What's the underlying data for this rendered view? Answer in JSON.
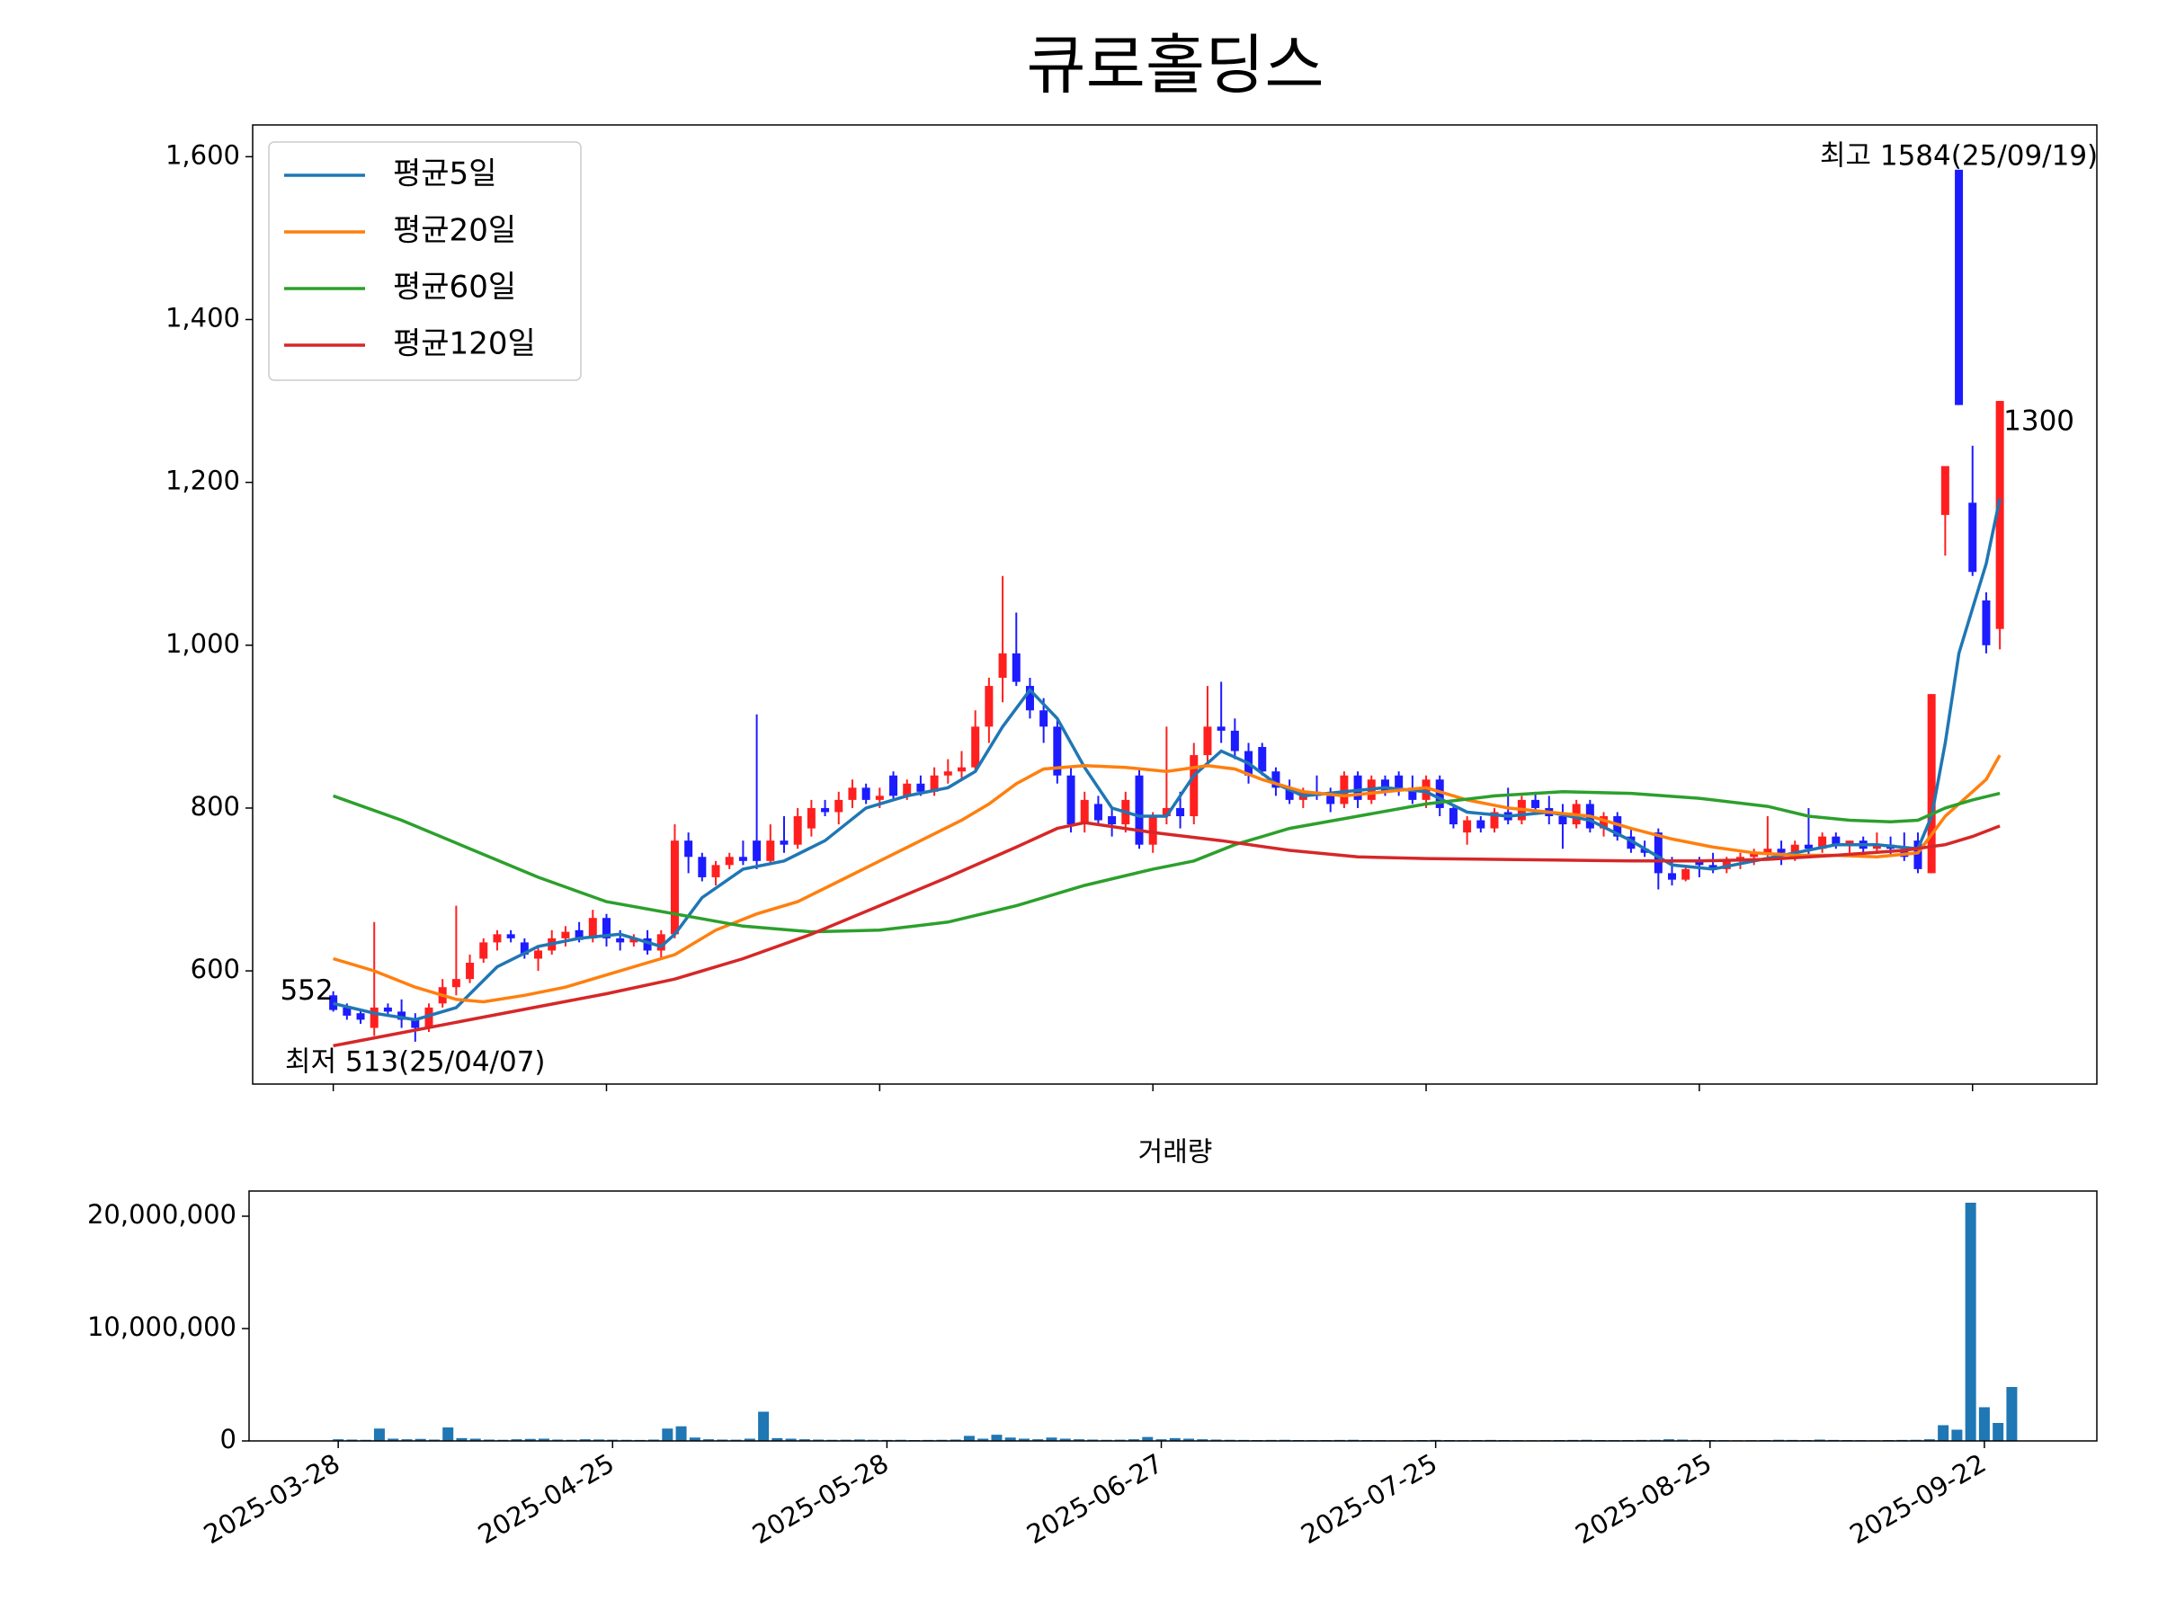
{
  "chart_data": [
    {
      "type": "candlestick",
      "title": "큐로홀딩스",
      "up_color": "#ff1f1f",
      "down_color": "#1c1cff",
      "xlim": [
        -5.9,
        129.1
      ],
      "xticks": [
        0,
        20,
        40,
        60,
        80,
        100,
        120
      ],
      "ylim": [
        461,
        1639
      ],
      "yticks": [
        600,
        800,
        {
          "value": 1000,
          "label": "1,000"
        },
        {
          "value": 1200,
          "label": "1,200"
        },
        {
          "value": 1400,
          "label": "1,400"
        },
        {
          "value": 1600,
          "label": "1,600"
        }
      ],
      "legend": "upper left",
      "high_label": "최고 1584(25/09/19)",
      "high_color": "#ff0000",
      "low_label": "최저 513(25/04/07)",
      "low_color": "#0000ff",
      "open": [
        570,
        555,
        548,
        530,
        555,
        550,
        540,
        530,
        560,
        580,
        590,
        615,
        635,
        645,
        635,
        615,
        625,
        640,
        650,
        640,
        665,
        640,
        635,
        640,
        625,
        645,
        760,
        740,
        715,
        730,
        740,
        760,
        735,
        760,
        755,
        775,
        800,
        795,
        810,
        825,
        810,
        840,
        815,
        830,
        820,
        840,
        845,
        850,
        900,
        960,
        990,
        950,
        920,
        900,
        840,
        780,
        805,
        790,
        780,
        840,
        755,
        790,
        800,
        790,
        865,
        900,
        895,
        870,
        875,
        845,
        825,
        810,
        820,
        815,
        805,
        840,
        810,
        835,
        840,
        825,
        810,
        835,
        800,
        770,
        785,
        775,
        795,
        785,
        810,
        800,
        790,
        780,
        805,
        775,
        790,
        765,
        750,
        770,
        720,
        712,
        735,
        730,
        725,
        735,
        740,
        745,
        750,
        745,
        755,
        750,
        765,
        755,
        760,
        750,
        755,
        750,
        760,
        720,
        1160,
        1584,
        1175,
        1055,
        1020
      ],
      "high": [
        575,
        560,
        552,
        660,
        560,
        565,
        548,
        560,
        590,
        680,
        620,
        640,
        650,
        650,
        640,
        630,
        650,
        655,
        660,
        675,
        670,
        650,
        645,
        650,
        650,
        780,
        770,
        745,
        735,
        745,
        760,
        915,
        780,
        790,
        800,
        810,
        810,
        820,
        835,
        830,
        825,
        845,
        835,
        840,
        850,
        860,
        870,
        920,
        960,
        1085,
        1040,
        960,
        935,
        910,
        850,
        820,
        815,
        800,
        820,
        850,
        795,
        900,
        820,
        880,
        950,
        955,
        910,
        880,
        880,
        850,
        835,
        825,
        840,
        825,
        845,
        845,
        840,
        840,
        845,
        840,
        840,
        840,
        805,
        790,
        790,
        800,
        825,
        815,
        820,
        815,
        805,
        810,
        810,
        795,
        795,
        775,
        760,
        775,
        740,
        730,
        740,
        745,
        740,
        745,
        750,
        790,
        760,
        760,
        800,
        770,
        770,
        760,
        765,
        770,
        765,
        770,
        770,
        940,
        1220,
        1584,
        1245,
        1065,
        1300
      ],
      "low": [
        550,
        540,
        535,
        520,
        545,
        530,
        513,
        525,
        555,
        570,
        585,
        610,
        625,
        635,
        615,
        600,
        620,
        630,
        635,
        635,
        630,
        625,
        630,
        620,
        615,
        640,
        720,
        710,
        705,
        725,
        730,
        725,
        730,
        745,
        750,
        765,
        790,
        780,
        800,
        805,
        800,
        810,
        810,
        815,
        815,
        830,
        835,
        845,
        880,
        930,
        950,
        910,
        880,
        830,
        770,
        770,
        780,
        765,
        770,
        750,
        745,
        780,
        775,
        780,
        850,
        880,
        860,
        830,
        840,
        815,
        805,
        800,
        810,
        795,
        800,
        800,
        805,
        815,
        815,
        805,
        800,
        790,
        775,
        755,
        770,
        770,
        780,
        780,
        795,
        780,
        750,
        775,
        770,
        765,
        760,
        745,
        740,
        700,
        705,
        710,
        715,
        720,
        720,
        725,
        730,
        740,
        730,
        735,
        740,
        745,
        750,
        745,
        745,
        745,
        740,
        735,
        720,
        720,
        1110,
        1295,
        1085,
        990,
        995
      ],
      "close": [
        552,
        545,
        540,
        555,
        550,
        540,
        530,
        555,
        580,
        590,
        610,
        635,
        645,
        640,
        620,
        625,
        640,
        648,
        638,
        665,
        640,
        635,
        640,
        625,
        645,
        760,
        740,
        715,
        730,
        740,
        735,
        735,
        760,
        755,
        790,
        800,
        795,
        810,
        825,
        810,
        815,
        815,
        830,
        820,
        840,
        845,
        850,
        900,
        950,
        990,
        955,
        920,
        900,
        840,
        780,
        810,
        785,
        780,
        810,
        755,
        790,
        800,
        790,
        865,
        900,
        895,
        870,
        840,
        845,
        825,
        810,
        820,
        815,
        805,
        840,
        810,
        835,
        820,
        825,
        810,
        835,
        800,
        780,
        785,
        775,
        795,
        785,
        810,
        800,
        790,
        780,
        805,
        775,
        790,
        765,
        750,
        745,
        720,
        712,
        725,
        730,
        725,
        735,
        740,
        745,
        750,
        745,
        755,
        750,
        765,
        755,
        760,
        750,
        755,
        750,
        740,
        725,
        940,
        1220,
        1295,
        1090,
        1000,
        1300
      ],
      "series": [
        {
          "name": "평균5일",
          "color": "#1f77b4",
          "x": [
            0,
            3,
            6,
            9,
            12,
            15,
            18,
            21,
            24,
            25,
            27,
            30,
            33,
            36,
            39,
            42,
            45,
            47,
            49,
            51,
            53,
            55,
            57,
            59,
            61,
            63,
            65,
            67,
            69,
            71,
            74,
            77,
            80,
            83,
            86,
            89,
            92,
            95,
            98,
            101,
            104,
            107,
            110,
            113,
            116,
            117,
            118,
            119,
            120,
            121,
            122
          ],
          "values": [
            560,
            548,
            540,
            555,
            605,
            630,
            640,
            645,
            630,
            645,
            690,
            725,
            735,
            760,
            800,
            815,
            825,
            845,
            900,
            945,
            910,
            850,
            800,
            790,
            790,
            840,
            870,
            855,
            830,
            815,
            820,
            825,
            820,
            795,
            790,
            795,
            785,
            760,
            730,
            725,
            735,
            745,
            755,
            755,
            750,
            790,
            880,
            990,
            1045,
            1100,
            1180
          ]
        },
        {
          "name": "평균20일",
          "color": "#ff7f0e",
          "x": [
            0,
            3,
            6,
            9,
            11,
            14,
            17,
            20,
            23,
            25,
            28,
            31,
            34,
            37,
            40,
            43,
            46,
            48,
            50,
            52,
            55,
            58,
            61,
            64,
            66,
            68,
            71,
            74,
            77,
            80,
            83,
            86,
            89,
            92,
            95,
            98,
            101,
            104,
            107,
            110,
            113,
            116,
            118,
            120,
            121,
            122
          ],
          "values": [
            615,
            600,
            580,
            565,
            562,
            570,
            580,
            595,
            610,
            620,
            650,
            670,
            685,
            710,
            735,
            760,
            785,
            805,
            830,
            848,
            852,
            850,
            845,
            852,
            848,
            835,
            820,
            815,
            820,
            825,
            810,
            800,
            795,
            790,
            775,
            762,
            752,
            745,
            742,
            742,
            740,
            745,
            790,
            820,
            835,
            865
          ]
        },
        {
          "name": "평균60일",
          "color": "#2ca02c",
          "x": [
            0,
            5,
            10,
            15,
            20,
            25,
            30,
            35,
            40,
            45,
            50,
            55,
            60,
            63,
            66,
            70,
            75,
            80,
            85,
            90,
            95,
            100,
            105,
            108,
            111,
            114,
            116,
            118,
            120,
            122
          ],
          "values": [
            815,
            785,
            750,
            715,
            685,
            670,
            655,
            648,
            650,
            660,
            680,
            705,
            725,
            735,
            755,
            775,
            790,
            805,
            815,
            820,
            818,
            812,
            802,
            790,
            785,
            783,
            785,
            800,
            810,
            818
          ]
        },
        {
          "name": "평균120일",
          "color": "#d62728",
          "x": [
            0,
            10,
            20,
            25,
            30,
            35,
            40,
            45,
            50,
            53,
            55,
            60,
            65,
            70,
            75,
            80,
            85,
            90,
            95,
            100,
            105,
            110,
            115,
            118,
            120,
            122
          ],
          "values": [
            508,
            540,
            572,
            590,
            615,
            645,
            680,
            715,
            752,
            775,
            782,
            770,
            760,
            748,
            740,
            738,
            737,
            736,
            735,
            735,
            737,
            742,
            748,
            755,
            765,
            778
          ]
        }
      ]
    },
    {
      "type": "bar",
      "title": "거래량",
      "color": "#1f77b4",
      "xlim": [
        -6.5,
        128.2
      ],
      "xticks": [
        {
          "value": 0,
          "label": "2025-03-28"
        },
        {
          "value": 20,
          "label": "2025-04-25"
        },
        {
          "value": 40,
          "label": "2025-05-28"
        },
        {
          "value": 60,
          "label": "2025-06-27"
        },
        {
          "value": 80,
          "label": "2025-07-25"
        },
        {
          "value": 100,
          "label": "2025-08-25"
        },
        {
          "value": 120,
          "label": "2025-09-22"
        }
      ],
      "ylim": [
        0,
        22240000
      ],
      "yticks": [
        0,
        {
          "value": 10000000,
          "label": "10,000,000"
        },
        {
          "value": 20000000,
          "label": "20,000,000"
        }
      ],
      "values": [
        150000,
        120000,
        100000,
        1100000,
        200000,
        150000,
        180000,
        120000,
        1200000,
        250000,
        200000,
        120000,
        100000,
        150000,
        180000,
        200000,
        120000,
        100000,
        150000,
        130000,
        110000,
        100000,
        90000,
        120000,
        1100000,
        1300000,
        300000,
        150000,
        120000,
        110000,
        200000,
        2600000,
        250000,
        200000,
        150000,
        120000,
        100000,
        110000,
        130000,
        100000,
        90000,
        100000,
        80000,
        90000,
        100000,
        120000,
        450000,
        200000,
        550000,
        300000,
        200000,
        150000,
        300000,
        200000,
        150000,
        120000,
        100000,
        110000,
        150000,
        350000,
        150000,
        250000,
        200000,
        150000,
        120000,
        100000,
        90000,
        80000,
        90000,
        100000,
        80000,
        70000,
        80000,
        90000,
        100000,
        80000,
        70000,
        60000,
        70000,
        80000,
        90000,
        80000,
        70000,
        80000,
        90000,
        80000,
        70000,
        60000,
        70000,
        80000,
        90000,
        100000,
        80000,
        70000,
        80000,
        90000,
        100000,
        150000,
        120000,
        90000,
        80000,
        70000,
        60000,
        70000,
        80000,
        100000,
        90000,
        80000,
        120000,
        90000,
        80000,
        70000,
        60000,
        80000,
        90000,
        100000,
        150000,
        1400000,
        1000000,
        21200000,
        3000000,
        1600000,
        4800000
      ]
    }
  ]
}
